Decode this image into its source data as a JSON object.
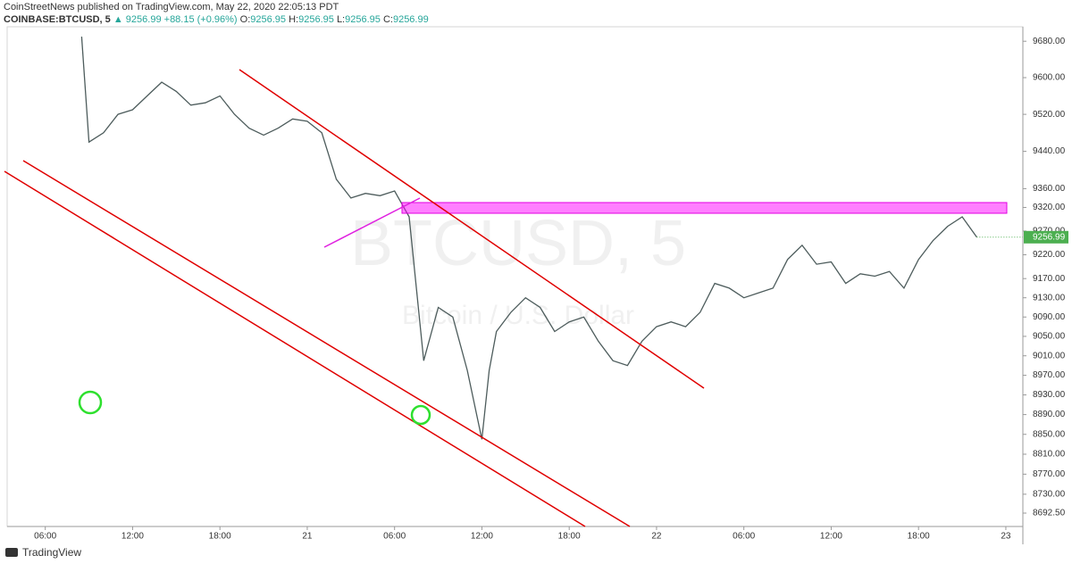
{
  "header": {
    "title": "CoinStreetNews published on TradingView.com, May 22, 2020 22:05:13 PDT",
    "symbol": "COINBASE:BTCUSD, 5",
    "last": "▲ 9256.99",
    "change": "+88.15 (+0.96%)",
    "o_label": "O:",
    "o": "9256.95",
    "h_label": "H:",
    "h": "9256.95",
    "l_label": "L:",
    "l": "9256.95",
    "c_label": "C:",
    "c": "9256.99"
  },
  "watermark": {
    "symbol": "BTCUSD, 5",
    "description": "Bitcoin / U.S. Dollar"
  },
  "footer": {
    "brand": "TradingView"
  },
  "chart_data": {
    "type": "line",
    "log_scale": true,
    "color": "#4d5c5c",
    "last_price_color": "#4caf50",
    "xlim": [
      3.38,
      73.17
    ],
    "ylim": [
      8666,
      9712
    ],
    "xticks": [
      {
        "value": 6,
        "label": "06:00"
      },
      {
        "value": 12,
        "label": "12:00"
      },
      {
        "value": 18,
        "label": "18:00"
      },
      {
        "value": 24,
        "label": "21"
      },
      {
        "value": 30,
        "label": "06:00"
      },
      {
        "value": 36,
        "label": "12:00"
      },
      {
        "value": 42,
        "label": "18:00"
      },
      {
        "value": 48,
        "label": "22"
      },
      {
        "value": 54,
        "label": "06:00"
      },
      {
        "value": 60,
        "label": "12:00"
      },
      {
        "value": 66,
        "label": "18:00"
      },
      {
        "value": 72,
        "label": "23"
      }
    ],
    "yticks": [
      {
        "value": 9680,
        "label": "9680.00"
      },
      {
        "value": 9600,
        "label": "9600.00"
      },
      {
        "value": 9520,
        "label": "9520.00"
      },
      {
        "value": 9440,
        "label": "9440.00"
      },
      {
        "value": 9360,
        "label": "9360.00"
      },
      {
        "value": 9320,
        "label": "9320.00"
      },
      {
        "value": 9270,
        "label": "9270.00"
      },
      {
        "value": 9220,
        "label": "9220.00"
      },
      {
        "value": 9170,
        "label": "9170.00"
      },
      {
        "value": 9130,
        "label": "9130.00"
      },
      {
        "value": 9090,
        "label": "9090.00"
      },
      {
        "value": 9050,
        "label": "9050.00"
      },
      {
        "value": 9010,
        "label": "9010.00"
      },
      {
        "value": 8970,
        "label": "8970.00"
      },
      {
        "value": 8930,
        "label": "8930.00"
      },
      {
        "value": 8890,
        "label": "8890.00"
      },
      {
        "value": 8850,
        "label": "8850.00"
      },
      {
        "value": 8810,
        "label": "8810.00"
      },
      {
        "value": 8770,
        "label": "8770.00"
      },
      {
        "value": 8730,
        "label": "8730.00"
      },
      {
        "value": 8692.5,
        "label": "8692.50"
      }
    ],
    "x": [
      8.5,
      9,
      10,
      11,
      12,
      13,
      14,
      15,
      16,
      17,
      18,
      19,
      20,
      21,
      22,
      23,
      24,
      25,
      26,
      27,
      28,
      29,
      30,
      31,
      31.5,
      32,
      33,
      34,
      35,
      36,
      36.5,
      37,
      38,
      39,
      40,
      41,
      42,
      43,
      44,
      45,
      46,
      47,
      48,
      49,
      50,
      51,
      52,
      53,
      54,
      55,
      56,
      57,
      58,
      59,
      60,
      61,
      62,
      63,
      64,
      65,
      66,
      67,
      68,
      69,
      70
    ],
    "values": [
      9690,
      9460,
      9480,
      9520,
      9530,
      9560,
      9590,
      9570,
      9540,
      9545,
      9560,
      9520,
      9490,
      9475,
      9490,
      9510,
      9505,
      9480,
      9380,
      9340,
      9350,
      9345,
      9355,
      9300,
      9150,
      9000,
      9110,
      9090,
      8980,
      8840,
      8980,
      9060,
      9100,
      9130,
      9110,
      9060,
      9080,
      9090,
      9040,
      9000,
      8990,
      9040,
      9070,
      9080,
      9070,
      9100,
      9160,
      9150,
      9130,
      9140,
      9150,
      9210,
      9240,
      9200,
      9205,
      9160,
      9180,
      9175,
      9185,
      9150,
      9210,
      9250,
      9280,
      9300,
      9256.99
    ]
  }
}
